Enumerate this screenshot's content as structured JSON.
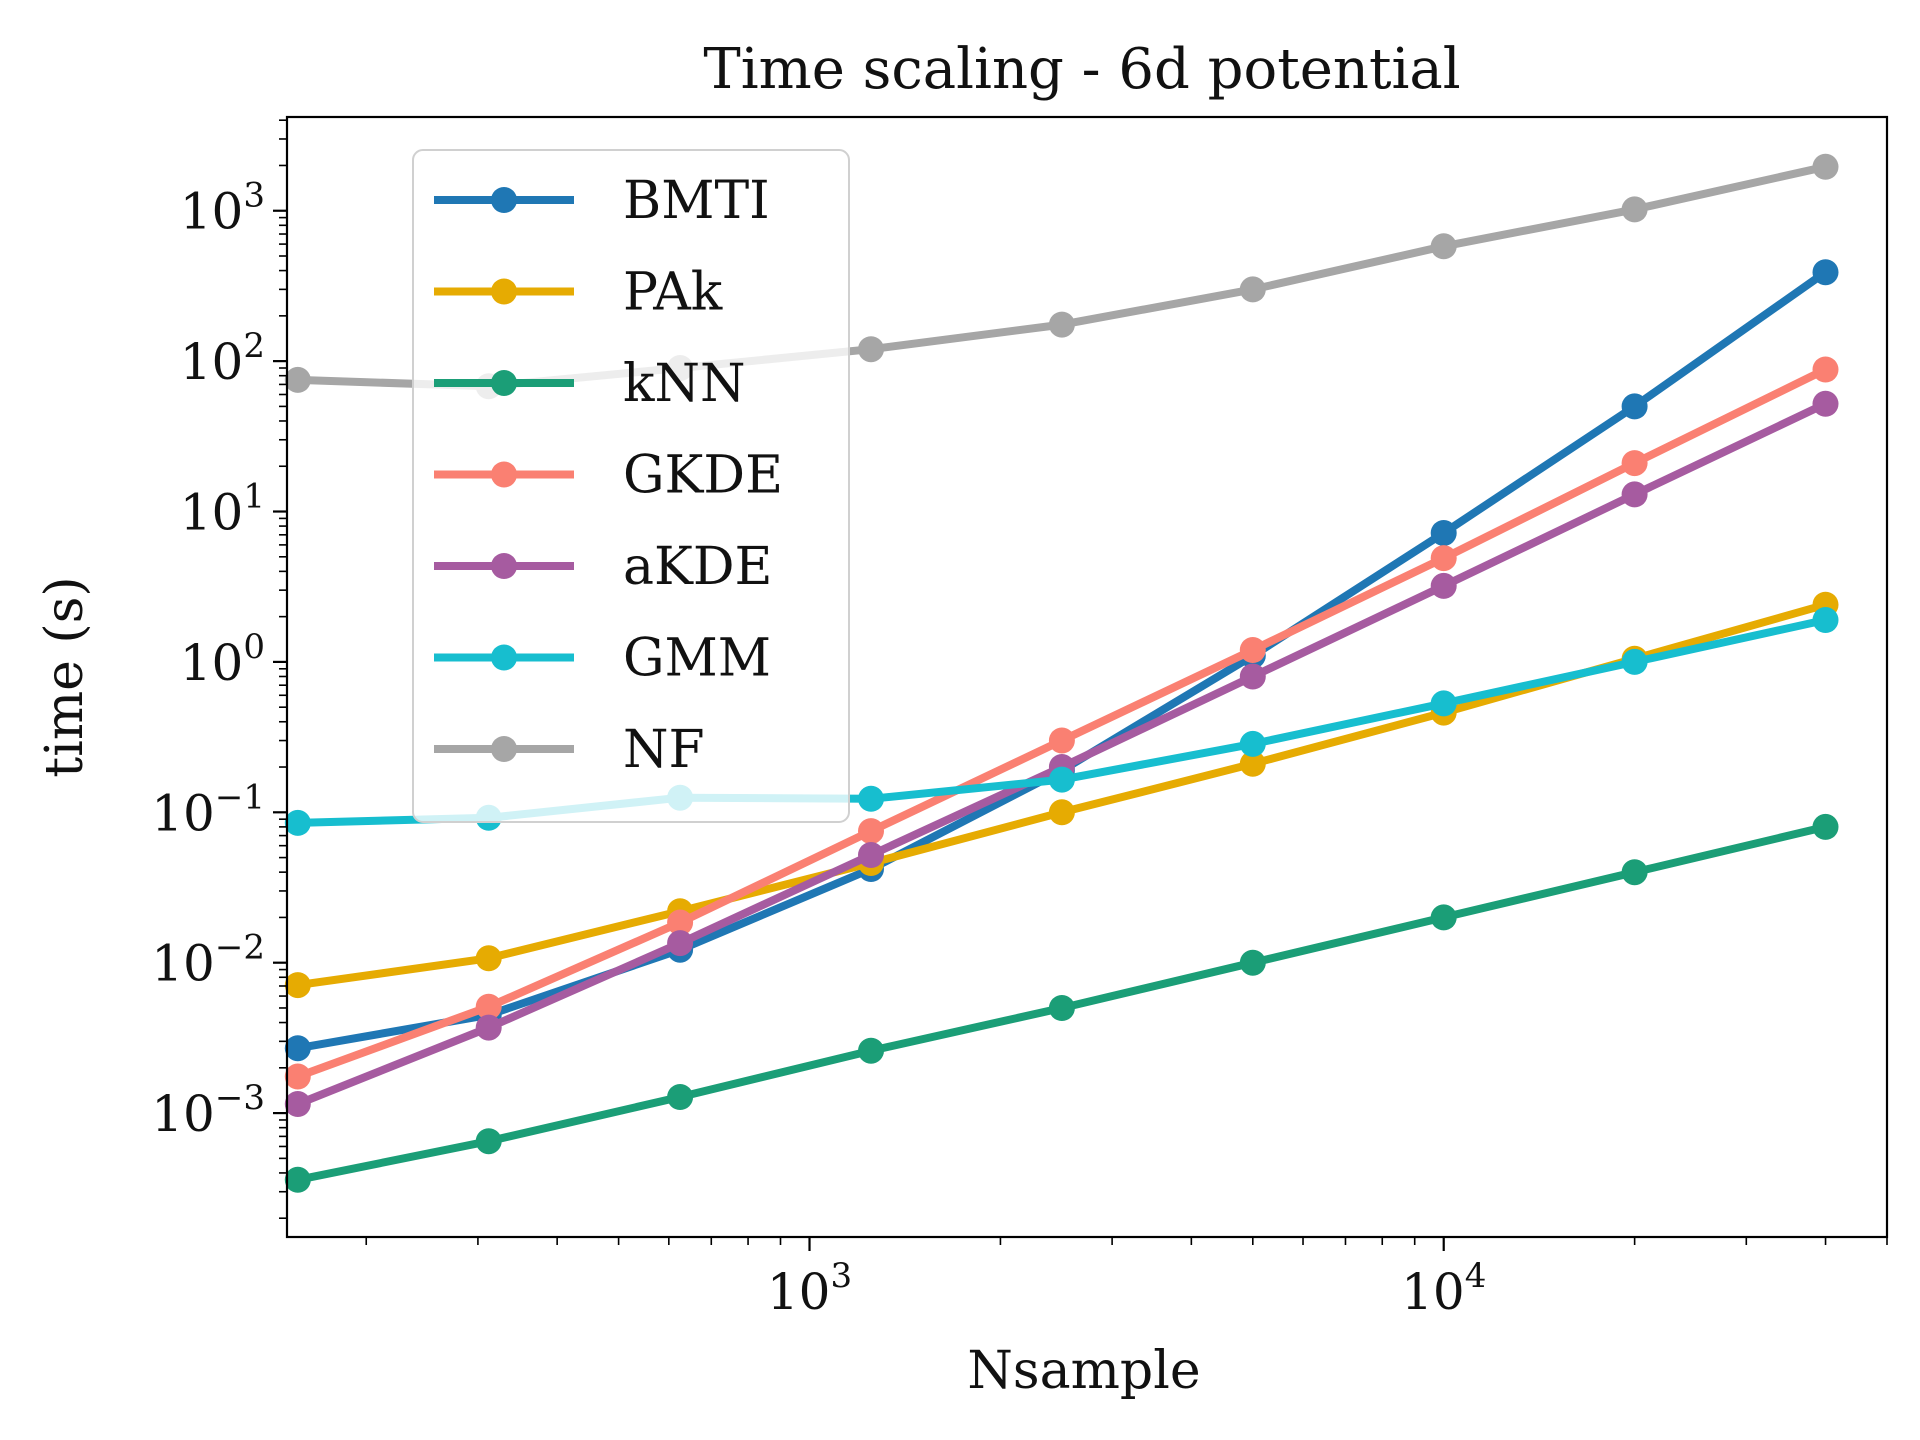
{
  "chart_data": {
    "type": "line",
    "title": "Time scaling - 6d potential",
    "xlabel": "Nsample",
    "ylabel": "time (s)",
    "xscale": "log",
    "yscale": "log",
    "xlim": [
      150,
      50000
    ],
    "ylim": [
      0.00015,
      4200
    ],
    "x": [
      156,
      312,
      625,
      1250,
      2500,
      5000,
      10000,
      20000,
      40000
    ],
    "xticks": [
      {
        "value": 1000,
        "base": "10",
        "exp": "3"
      },
      {
        "value": 10000,
        "base": "10",
        "exp": "4"
      }
    ],
    "yticks": [
      {
        "value": 0.001,
        "base": "10",
        "exp": "−3"
      },
      {
        "value": 0.01,
        "base": "10",
        "exp": "−2"
      },
      {
        "value": 0.1,
        "base": "10",
        "exp": "−1"
      },
      {
        "value": 1,
        "base": "10",
        "exp": "0"
      },
      {
        "value": 10,
        "base": "10",
        "exp": "1"
      },
      {
        "value": 100,
        "base": "10",
        "exp": "2"
      },
      {
        "value": 1000,
        "base": "10",
        "exp": "3"
      }
    ],
    "grid": false,
    "legend_position": "upper-left",
    "series": [
      {
        "name": "BMTI",
        "color": "#1f77b4",
        "values": [
          0.0027,
          0.0045,
          0.0122,
          0.042,
          0.19,
          1.1,
          7.2,
          50,
          390
        ]
      },
      {
        "name": "PAk",
        "color": "#e6ab02",
        "values": [
          0.0071,
          0.0107,
          0.022,
          0.046,
          0.1,
          0.21,
          0.46,
          1.05,
          2.4
        ]
      },
      {
        "name": "kNN",
        "color": "#1b9e77",
        "values": [
          0.00036,
          0.00065,
          0.00128,
          0.0026,
          0.005,
          0.01,
          0.02,
          0.04,
          0.08
        ]
      },
      {
        "name": "GKDE",
        "color": "#fa8072",
        "values": [
          0.00175,
          0.0051,
          0.0185,
          0.075,
          0.3,
          1.2,
          4.9,
          21,
          88
        ]
      },
      {
        "name": "aKDE",
        "color": "#a65ba0",
        "values": [
          0.00115,
          0.0037,
          0.0135,
          0.052,
          0.2,
          0.8,
          3.2,
          13,
          52
        ]
      },
      {
        "name": "GMM",
        "color": "#17becf",
        "values": [
          0.085,
          0.092,
          0.125,
          0.123,
          0.165,
          0.285,
          0.53,
          1.0,
          1.9
        ]
      },
      {
        "name": "NF",
        "color": "#a6a6a6",
        "values": [
          75,
          68,
          90,
          120,
          175,
          300,
          580,
          1020,
          1960
        ]
      }
    ]
  }
}
